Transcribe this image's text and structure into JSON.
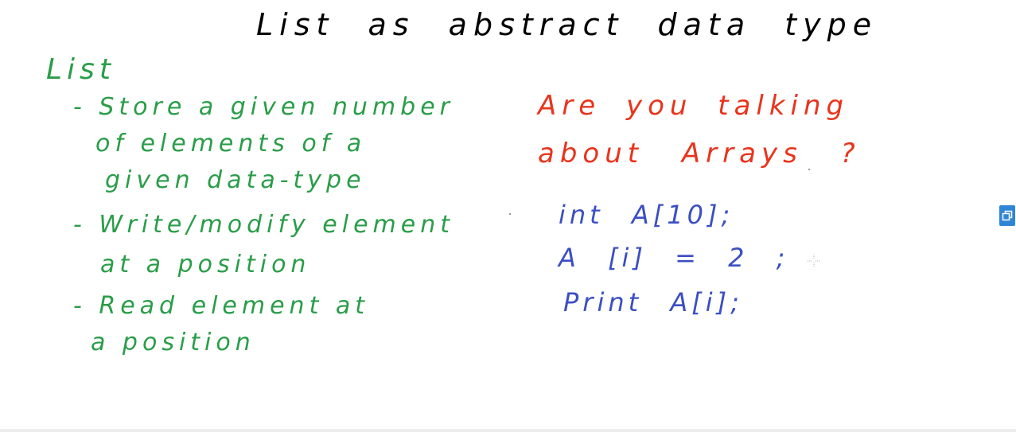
{
  "slide": {
    "title": "List as abstract data type",
    "heading": "List",
    "bullets": {
      "store_line1": "- Store a given number",
      "store_line2": "of elements of a",
      "store_line3": "given data-type",
      "write_line1": "- Write/modify element",
      "write_line2": "at a position",
      "read_line1": "- Read element at",
      "read_line2": "a position"
    },
    "question": {
      "line1": "Are you talking",
      "line2": "about Arrays ?"
    },
    "code": {
      "line1": "int A[10];",
      "line2": "A [i] = 2 ;",
      "line3": "Print A[i];"
    }
  },
  "colors": {
    "title": "#000000",
    "list_text": "#2a9d49",
    "question_text": "#e8341c",
    "code_text": "#3b4fc2",
    "side_widget": "#2f86d6"
  },
  "icons": {
    "side_widget": "restore-window-icon",
    "cursor": "crosshair-cursor-icon"
  }
}
